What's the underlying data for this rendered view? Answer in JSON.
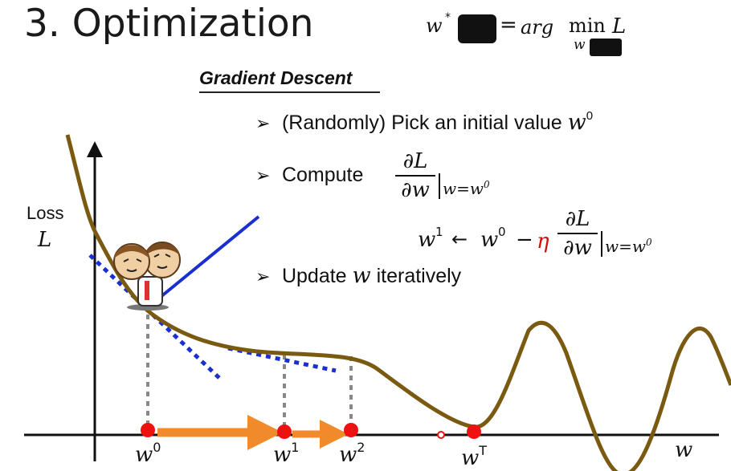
{
  "title": "3. Optimization",
  "objective": {
    "lhs": "w",
    "star": "*",
    "eq": "=",
    "arg": "arg",
    "min": "min",
    "target": "L",
    "under": "w"
  },
  "section_title": "Gradient Descent",
  "bullets": [
    {
      "marker": "➢",
      "text": "(Randomly) Pick an initial value ",
      "var": "w",
      "sup": "0"
    },
    {
      "marker": "➢",
      "text": "Compute"
    },
    {
      "marker": "➢",
      "text": "Update ",
      "var": "w",
      "tail": " iteratively"
    }
  ],
  "derivative": {
    "num": "∂L",
    "den": "∂w",
    "eval": "w=w",
    "eval_sup": "0"
  },
  "update_rule": {
    "lhs": "w",
    "lhs_sup": "1",
    "arrow": "←",
    "w0": "w",
    "w0_sup": "0",
    "minus": "−",
    "eta": "η",
    "num": "∂L",
    "den": "∂w",
    "eval": "w=w",
    "eval_sup": "0"
  },
  "axes": {
    "ylabel": "Loss",
    "ylabel_var": "L",
    "xlabel": "w"
  },
  "points": [
    {
      "name": "w",
      "sup": "0"
    },
    {
      "name": "w",
      "sup": "1"
    },
    {
      "name": "w",
      "sup": "2"
    },
    {
      "name": "w",
      "sup": "T"
    }
  ],
  "colors": {
    "curve": "#7a5a10",
    "tangent_blue": "#1a2fd0",
    "point_red": "#ee1111",
    "step_arrow": "#f08a2a",
    "eta_red": "#d01010",
    "dotted_gray": "#888888"
  }
}
